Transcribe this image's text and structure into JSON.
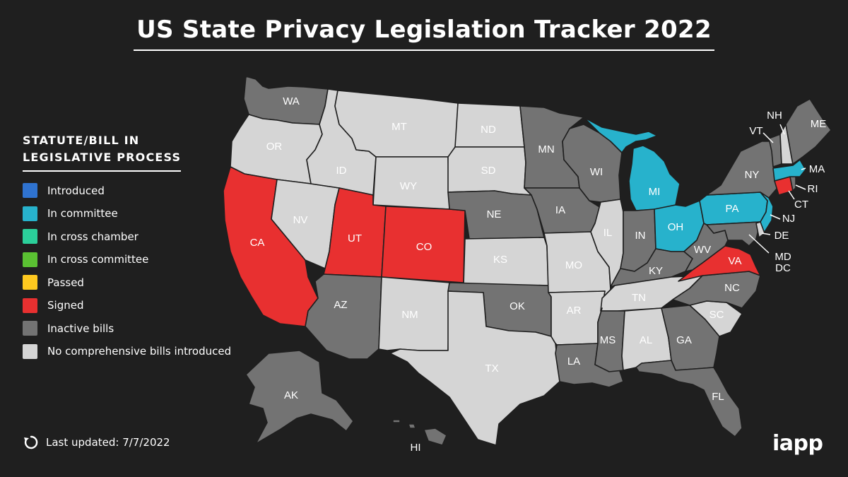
{
  "title": "US State Privacy Legislation Tracker 2022",
  "legend": {
    "heading": "STATUTE/BILL IN\nLEGISLATIVE PROCESS",
    "items": [
      {
        "label": "Introduced",
        "color": "#2f73d0"
      },
      {
        "label": "In committee",
        "color": "#27b2cc"
      },
      {
        "label": "In cross chamber",
        "color": "#2bcf9a"
      },
      {
        "label": "In cross committee",
        "color": "#5ac132"
      },
      {
        "label": "Passed",
        "color": "#ffc91f"
      },
      {
        "label": "Signed",
        "color": "#e83030"
      },
      {
        "label": "Inactive bills",
        "color": "#737373"
      },
      {
        "label": "No comprehensive bills introduced",
        "color": "#d5d5d5"
      }
    ]
  },
  "status_colors": {
    "in_committee": "#27b2cc",
    "signed": "#e83030",
    "inactive": "#737373",
    "none": "#d5d5d5"
  },
  "states": {
    "WA": {
      "label": "WA",
      "status": "inactive"
    },
    "OR": {
      "label": "OR",
      "status": "none"
    },
    "CA": {
      "label": "CA",
      "status": "signed"
    },
    "NV": {
      "label": "NV",
      "status": "none"
    },
    "ID": {
      "label": "ID",
      "status": "none"
    },
    "MT": {
      "label": "MT",
      "status": "none"
    },
    "WY": {
      "label": "WY",
      "status": "none"
    },
    "UT": {
      "label": "UT",
      "status": "signed"
    },
    "CO": {
      "label": "CO",
      "status": "signed"
    },
    "AZ": {
      "label": "AZ",
      "status": "inactive"
    },
    "NM": {
      "label": "NM",
      "status": "none"
    },
    "ND": {
      "label": "ND",
      "status": "none"
    },
    "SD": {
      "label": "SD",
      "status": "none"
    },
    "NE": {
      "label": "NE",
      "status": "inactive"
    },
    "KS": {
      "label": "KS",
      "status": "none"
    },
    "OK": {
      "label": "OK",
      "status": "inactive"
    },
    "TX": {
      "label": "TX",
      "status": "none"
    },
    "MN": {
      "label": "MN",
      "status": "inactive"
    },
    "IA": {
      "label": "IA",
      "status": "inactive"
    },
    "MO": {
      "label": "MO",
      "status": "none"
    },
    "AR": {
      "label": "AR",
      "status": "none"
    },
    "LA": {
      "label": "LA",
      "status": "inactive"
    },
    "WI": {
      "label": "WI",
      "status": "inactive"
    },
    "IL": {
      "label": "IL",
      "status": "none"
    },
    "MI": {
      "label": "MI",
      "status": "in_committee"
    },
    "IN": {
      "label": "IN",
      "status": "inactive"
    },
    "OH": {
      "label": "OH",
      "status": "in_committee"
    },
    "KY": {
      "label": "KY",
      "status": "inactive"
    },
    "TN": {
      "label": "TN",
      "status": "none"
    },
    "MS": {
      "label": "MS",
      "status": "inactive"
    },
    "AL": {
      "label": "AL",
      "status": "none"
    },
    "GA": {
      "label": "GA",
      "status": "inactive"
    },
    "FL": {
      "label": "FL",
      "status": "inactive"
    },
    "SC": {
      "label": "SC",
      "status": "none"
    },
    "NC": {
      "label": "NC",
      "status": "inactive"
    },
    "VA": {
      "label": "VA",
      "status": "signed"
    },
    "WV": {
      "label": "WV",
      "status": "inactive"
    },
    "PA": {
      "label": "PA",
      "status": "in_committee"
    },
    "NY": {
      "label": "NY",
      "status": "inactive"
    },
    "NJ": {
      "label": "NJ",
      "status": "in_committee"
    },
    "DE": {
      "label": "DE",
      "status": "none"
    },
    "MD": {
      "label": "MD",
      "status": "inactive"
    },
    "DC": {
      "label": "DC",
      "status": "none"
    },
    "CT": {
      "label": "CT",
      "status": "signed"
    },
    "RI": {
      "label": "RI",
      "status": "inactive"
    },
    "MA": {
      "label": "MA",
      "status": "in_committee"
    },
    "VT": {
      "label": "VT",
      "status": "inactive"
    },
    "NH": {
      "label": "NH",
      "status": "none"
    },
    "ME": {
      "label": "ME",
      "status": "inactive"
    },
    "AK": {
      "label": "AK",
      "status": "inactive"
    },
    "HI": {
      "label": "HI",
      "status": "inactive"
    }
  },
  "footer": {
    "updated": "Last updated: 7/7/2022",
    "updated_icon": "refresh-icon",
    "logo": "iapp"
  }
}
